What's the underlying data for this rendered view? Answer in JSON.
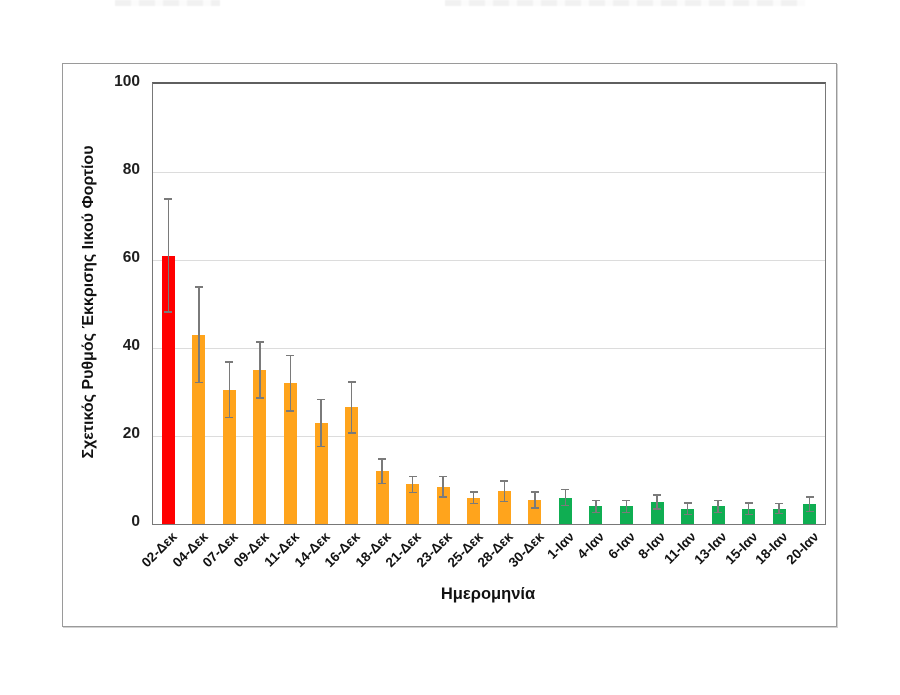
{
  "figure": {
    "background": "#ffffff",
    "frame_border_color": "#9a9a9a"
  },
  "chart_data": {
    "type": "bar",
    "title": "",
    "xlabel": "Ημερομηνία",
    "ylabel": "Σχετικός Ρυθμός Έκκρισης Ιικού Φορτίου",
    "ylim": [
      0,
      100
    ],
    "yticks": [
      0,
      20,
      40,
      60,
      80,
      100
    ],
    "grid": true,
    "legend": false,
    "error_bars": true,
    "categories": [
      "02-Δεκ",
      "04-Δεκ",
      "07-Δεκ",
      "09-Δεκ",
      "11-Δεκ",
      "14-Δεκ",
      "16-Δεκ",
      "18-Δεκ",
      "21-Δεκ",
      "23-Δεκ",
      "25-Δεκ",
      "28-Δεκ",
      "30-Δεκ",
      "1-Ιαν",
      "4-Ιαν",
      "6-Ιαν",
      "8-Ιαν",
      "11-Ιαν",
      "13-Ιαν",
      "15-Ιαν",
      "18-Ιαν",
      "20-Ιαν"
    ],
    "bars": [
      {
        "label": "02-Δεκ",
        "value": 61,
        "error": 13,
        "color": "#ff0000"
      },
      {
        "label": "04-Δεκ",
        "value": 43,
        "error": 11,
        "color": "#ffa41c"
      },
      {
        "label": "07-Δεκ",
        "value": 30.5,
        "error": 6.5,
        "color": "#ffa41c"
      },
      {
        "label": "09-Δεκ",
        "value": 35,
        "error": 6.5,
        "color": "#ffa41c"
      },
      {
        "label": "11-Δεκ",
        "value": 32,
        "error": 6.5,
        "color": "#ffa41c"
      },
      {
        "label": "14-Δεκ",
        "value": 23,
        "error": 5.5,
        "color": "#ffa41c"
      },
      {
        "label": "16-Δεκ",
        "value": 26.5,
        "error": 6,
        "color": "#ffa41c"
      },
      {
        "label": "18-Δεκ",
        "value": 12,
        "error": 3,
        "color": "#ffa41c"
      },
      {
        "label": "21-Δεκ",
        "value": 9,
        "error": 2,
        "color": "#ffa41c"
      },
      {
        "label": "23-Δεκ",
        "value": 8.5,
        "error": 2.5,
        "color": "#ffa41c"
      },
      {
        "label": "25-Δεκ",
        "value": 6,
        "error": 1.5,
        "color": "#ffa41c"
      },
      {
        "label": "28-Δεκ",
        "value": 7.5,
        "error": 2.5,
        "color": "#ffa41c"
      },
      {
        "label": "30-Δεκ",
        "value": 5.5,
        "error": 2,
        "color": "#ffa41c"
      },
      {
        "label": "1-Ιαν",
        "value": 6,
        "error": 2,
        "color": "#0fae52"
      },
      {
        "label": "4-Ιαν",
        "value": 4,
        "error": 1.5,
        "color": "#0fae52"
      },
      {
        "label": "6-Ιαν",
        "value": 4,
        "error": 1.5,
        "color": "#0fae52"
      },
      {
        "label": "8-Ιαν",
        "value": 5,
        "error": 1.8,
        "color": "#0fae52"
      },
      {
        "label": "11-Ιαν",
        "value": 3.5,
        "error": 1.5,
        "color": "#0fae52"
      },
      {
        "label": "13-Ιαν",
        "value": 4,
        "error": 1.5,
        "color": "#0fae52"
      },
      {
        "label": "15-Ιαν",
        "value": 3.5,
        "error": 1.5,
        "color": "#0fae52"
      },
      {
        "label": "18-Ιαν",
        "value": 3.5,
        "error": 1.3,
        "color": "#0fae52"
      },
      {
        "label": "20-Ιαν",
        "value": 4.5,
        "error": 1.8,
        "color": "#0fae52"
      }
    ],
    "colors": {
      "highlight_bar": "#ff0000",
      "december_bars": "#ffa41c",
      "january_bars": "#0fae52",
      "error_bar": "#7a7a7a",
      "gridline": "#dcdcdc",
      "plot_border": "#787878",
      "tick_text": "#1f1f1f"
    }
  }
}
